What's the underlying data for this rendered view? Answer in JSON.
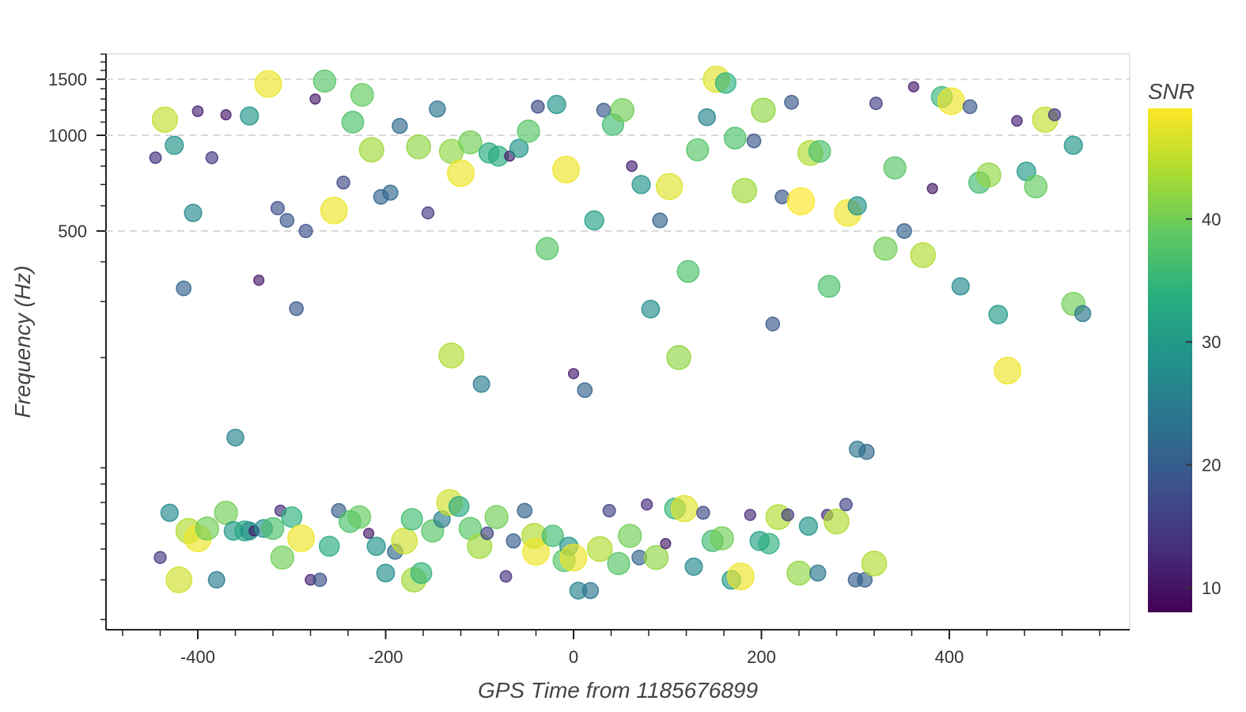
{
  "chart_data": {
    "type": "scatter",
    "title": "",
    "xlabel": "GPS Time from 1185676899",
    "ylabel": "Frequency (Hz)",
    "x_scale": "linear",
    "y_scale": "log",
    "xlim": [
      -480,
      590
    ],
    "ylim": [
      10,
      2000
    ],
    "x_ticks": [
      -400,
      -200,
      0,
      200,
      400
    ],
    "x_tick_labels": [
      "-400",
      "-200",
      "0",
      "200",
      "400"
    ],
    "y_ticks": [
      500,
      1000,
      1500
    ],
    "y_tick_labels": [
      "500",
      "1000",
      "1500"
    ],
    "grid": "horizontal dashed at 500, 1000, 1500",
    "marker_size_and_color": "SNR",
    "colormap": "viridis",
    "colorbar": {
      "title": "SNR",
      "range": [
        8,
        49
      ],
      "ticks": [
        10,
        20,
        30,
        40
      ],
      "tick_labels": [
        "10",
        "20",
        "30",
        "40"
      ]
    },
    "series": [
      {
        "x_label": "GPS Time from 1185676899",
        "points": [
          [
            -445,
            850,
            14
          ],
          [
            -435,
            1120,
            45
          ],
          [
            -425,
            930,
            29
          ],
          [
            -405,
            570,
            27
          ],
          [
            -400,
            1190,
            12
          ],
          [
            -385,
            850,
            15
          ],
          [
            -370,
            1160,
            11
          ],
          [
            -345,
            1150,
            29
          ],
          [
            -325,
            1450,
            48
          ],
          [
            -315,
            590,
            18
          ],
          [
            -305,
            540,
            19
          ],
          [
            -285,
            500,
            18
          ],
          [
            -275,
            1300,
            11
          ],
          [
            -265,
            1480,
            38
          ],
          [
            -255,
            580,
            48
          ],
          [
            -245,
            710,
            17
          ],
          [
            -235,
            1100,
            37
          ],
          [
            -225,
            1340,
            39
          ],
          [
            -215,
            900,
            43
          ],
          [
            -205,
            640,
            21
          ],
          [
            -195,
            660,
            22
          ],
          [
            -185,
            1070,
            22
          ],
          [
            -165,
            920,
            42
          ],
          [
            -155,
            570,
            15
          ],
          [
            -145,
            1210,
            24
          ],
          [
            -130,
            890,
            42
          ],
          [
            -120,
            760,
            48
          ],
          [
            -110,
            950,
            40
          ],
          [
            -90,
            880,
            33
          ],
          [
            -80,
            860,
            33
          ],
          [
            -68,
            860,
            11
          ],
          [
            -58,
            910,
            29
          ],
          [
            -48,
            1030,
            38
          ],
          [
            -38,
            1230,
            17
          ],
          [
            -28,
            440,
            38
          ],
          [
            -18,
            1250,
            29
          ],
          [
            -8,
            780,
            48
          ],
          [
            22,
            540,
            31
          ],
          [
            32,
            1200,
            19
          ],
          [
            42,
            1080,
            36
          ],
          [
            52,
            1200,
            40
          ],
          [
            62,
            800,
            12
          ],
          [
            72,
            700,
            29
          ],
          [
            92,
            540,
            21
          ],
          [
            102,
            690,
            47
          ],
          [
            132,
            900,
            38
          ],
          [
            142,
            1140,
            26
          ],
          [
            152,
            1500,
            47
          ],
          [
            162,
            1460,
            34
          ],
          [
            172,
            980,
            37
          ],
          [
            182,
            670,
            43
          ],
          [
            192,
            960,
            19
          ],
          [
            202,
            1200,
            42
          ],
          [
            222,
            640,
            19
          ],
          [
            232,
            1270,
            19
          ],
          [
            242,
            620,
            49
          ],
          [
            252,
            880,
            44
          ],
          [
            262,
            890,
            37
          ],
          [
            292,
            570,
            48
          ],
          [
            302,
            600,
            29
          ],
          [
            322,
            1260,
            16
          ],
          [
            332,
            440,
            40
          ],
          [
            342,
            790,
            38
          ],
          [
            352,
            500,
            21
          ],
          [
            362,
            1420,
            11
          ],
          [
            372,
            420,
            44
          ],
          [
            382,
            680,
            11
          ],
          [
            392,
            1320,
            35
          ],
          [
            402,
            1280,
            48
          ],
          [
            422,
            1230,
            19
          ],
          [
            432,
            710,
            36
          ],
          [
            442,
            750,
            42
          ],
          [
            472,
            1110,
            12
          ],
          [
            482,
            770,
            30
          ],
          [
            492,
            690,
            39
          ],
          [
            502,
            1120,
            45
          ],
          [
            512,
            1160,
            15
          ],
          [
            532,
            930,
            29
          ],
          [
            -415,
            330,
            21
          ],
          [
            -335,
            350,
            11
          ],
          [
            -295,
            285,
            19
          ],
          [
            -130,
            203,
            44
          ],
          [
            -98,
            165,
            25
          ],
          [
            0,
            178,
            11
          ],
          [
            12,
            158,
            21
          ],
          [
            82,
            284,
            28
          ],
          [
            112,
            200,
            42
          ],
          [
            122,
            373,
            37
          ],
          [
            212,
            255,
            19
          ],
          [
            272,
            335,
            37
          ],
          [
            412,
            335,
            27
          ],
          [
            452,
            273,
            30
          ],
          [
            462,
            182,
            48
          ],
          [
            532,
            295,
            40
          ],
          [
            542,
            275,
            24
          ],
          [
            -360,
            112,
            26
          ],
          [
            302,
            103,
            24
          ],
          [
            312,
            101,
            22
          ]
        ]
      }
    ],
    "cluster_low_frequency_points": [
      [
        -440,
        47,
        15
      ],
      [
        -430,
        65,
        27
      ],
      [
        -420,
        40,
        46
      ],
      [
        -410,
        57,
        44
      ],
      [
        -400,
        54,
        48
      ],
      [
        -390,
        58,
        40
      ],
      [
        -380,
        40,
        25
      ],
      [
        -370,
        65,
        40
      ],
      [
        -362,
        57,
        30
      ],
      [
        -350,
        57,
        33
      ],
      [
        -345,
        57,
        28
      ],
      [
        -340,
        57,
        11
      ],
      [
        -330,
        58,
        28
      ],
      [
        -320,
        58,
        37
      ],
      [
        -312,
        66,
        13
      ],
      [
        -310,
        47,
        40
      ],
      [
        -300,
        63,
        34
      ],
      [
        -290,
        54,
        48
      ],
      [
        -280,
        40,
        12
      ],
      [
        -270,
        40,
        18
      ],
      [
        -260,
        51,
        33
      ],
      [
        -250,
        66,
        20
      ],
      [
        -238,
        61,
        37
      ],
      [
        -228,
        63,
        39
      ],
      [
        -218,
        56,
        11
      ],
      [
        -210,
        51,
        29
      ],
      [
        -200,
        42,
        28
      ],
      [
        -190,
        49,
        22
      ],
      [
        -180,
        53,
        46
      ],
      [
        -172,
        62,
        36
      ],
      [
        -170,
        40,
        43
      ],
      [
        -162,
        42,
        35
      ],
      [
        -150,
        57,
        38
      ],
      [
        -140,
        62,
        25
      ],
      [
        -132,
        70,
        46
      ],
      [
        -122,
        68,
        33
      ],
      [
        -110,
        58,
        38
      ],
      [
        -100,
        51,
        43
      ],
      [
        -92,
        56,
        16
      ],
      [
        -82,
        63,
        40
      ],
      [
        -72,
        41,
        14
      ],
      [
        -64,
        53,
        20
      ],
      [
        -52,
        66,
        21
      ],
      [
        -42,
        55,
        44
      ],
      [
        -40,
        49,
        48
      ],
      [
        -22,
        55,
        36
      ],
      [
        -10,
        46,
        38
      ],
      [
        -5,
        51,
        29
      ],
      [
        0,
        47,
        48
      ],
      [
        5,
        37,
        26
      ],
      [
        18,
        37,
        24
      ],
      [
        28,
        50,
        44
      ],
      [
        38,
        66,
        16
      ],
      [
        48,
        45,
        38
      ],
      [
        60,
        55,
        40
      ],
      [
        70,
        47,
        21
      ],
      [
        78,
        69,
        13
      ],
      [
        88,
        47,
        42
      ],
      [
        98,
        52,
        11
      ],
      [
        108,
        67,
        35
      ],
      [
        118,
        67,
        47
      ],
      [
        128,
        44,
        27
      ],
      [
        138,
        65,
        17
      ],
      [
        148,
        53,
        36
      ],
      [
        158,
        54,
        40
      ],
      [
        168,
        40,
        30
      ],
      [
        178,
        41,
        48
      ],
      [
        188,
        64,
        13
      ],
      [
        198,
        53,
        31
      ],
      [
        208,
        52,
        34
      ],
      [
        218,
        63,
        44
      ],
      [
        228,
        64,
        15
      ],
      [
        240,
        42,
        42
      ],
      [
        250,
        59,
        29
      ],
      [
        260,
        42,
        24
      ],
      [
        270,
        64,
        13
      ],
      [
        280,
        61,
        44
      ],
      [
        290,
        69,
        16
      ],
      [
        300,
        40,
        20
      ],
      [
        310,
        40,
        21
      ],
      [
        320,
        45,
        44
      ]
    ]
  }
}
